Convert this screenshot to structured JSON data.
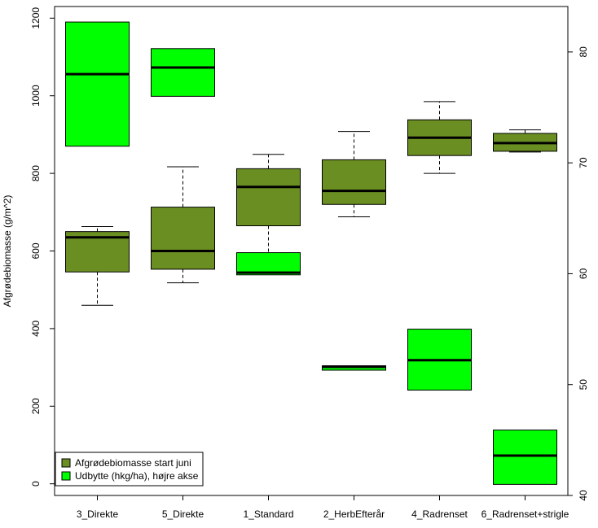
{
  "chart_data": {
    "type": "boxplot",
    "categories": [
      "3_Direkte",
      "5_Direkte",
      "1_Standard",
      "2_HerbEfterår",
      "4_Radrenset",
      "6_Radrenset+strigle"
    ],
    "ylabel": "Afgrødebiomasse (g/m^2)",
    "y2label": "",
    "left_axis": {
      "ticks": [
        0,
        200,
        400,
        600,
        800,
        1000,
        1200
      ],
      "range": [
        -30,
        1230
      ]
    },
    "right_axis": {
      "ticks": [
        40,
        50,
        60,
        70,
        80
      ],
      "range": [
        40.0,
        84.1
      ]
    },
    "grid": false,
    "legend_position": "bottom-left",
    "series": [
      {
        "name": "Afgrødebiomasse start juni",
        "axis": "left",
        "color": "#6b8e23",
        "boxes": [
          {
            "whisker_low": 460,
            "q1": 546,
            "median": 635,
            "q3": 650,
            "whisker_high": 663
          },
          {
            "whisker_low": 518,
            "q1": 553,
            "median": 600,
            "q3": 713,
            "whisker_high": 817
          },
          {
            "whisker_low": 549,
            "q1": 665,
            "median": 765,
            "q3": 812,
            "whisker_high": 849
          },
          {
            "whisker_low": 688,
            "q1": 720,
            "median": 755,
            "q3": 835,
            "whisker_high": 908
          },
          {
            "whisker_low": 800,
            "q1": 846,
            "median": 892,
            "q3": 938,
            "whisker_high": 985
          },
          {
            "whisker_low": 855,
            "q1": 857,
            "median": 878,
            "q3": 903,
            "whisker_high": 912
          }
        ]
      },
      {
        "name": "Udbytte (hkg/ha), højre akse",
        "axis": "right",
        "color": "#00ff00",
        "boxes": [
          {
            "whisker_low": 71.5,
            "q1": 71.5,
            "median": 78.0,
            "q3": 82.7,
            "whisker_high": 82.7
          },
          {
            "whisker_low": 76.0,
            "q1": 76.0,
            "median": 78.6,
            "q3": 80.3,
            "whisker_high": 80.3
          },
          {
            "whisker_low": 59.9,
            "q1": 59.9,
            "median": 60.1,
            "q3": 61.9,
            "whisker_high": 61.9
          },
          {
            "whisker_low": 51.3,
            "q1": 51.3,
            "median": 51.6,
            "q3": 51.7,
            "whisker_high": 51.7
          },
          {
            "whisker_low": 49.5,
            "q1": 49.5,
            "median": 52.2,
            "q3": 55.0,
            "whisker_high": 55.0
          },
          {
            "whisker_low": 41.0,
            "q1": 41.0,
            "median": 43.6,
            "q3": 45.9,
            "whisker_high": 45.9
          }
        ]
      }
    ]
  }
}
